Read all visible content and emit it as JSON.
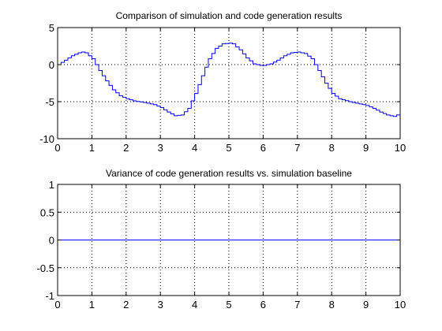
{
  "figure": {
    "background": "#ffffff",
    "axes_color": "#000000",
    "grid_color": "#000000",
    "line_color": "#0000ff"
  },
  "chart_data": [
    {
      "type": "line",
      "title": "Comparison of simulation and code generation results",
      "xlabel": "",
      "ylabel": "",
      "xlim": [
        0,
        10
      ],
      "ylim": [
        -10,
        5
      ],
      "xticks": [
        0,
        1,
        2,
        3,
        4,
        5,
        6,
        7,
        8,
        9,
        10
      ],
      "yticks": [
        5,
        0,
        -5,
        -10
      ],
      "grid": true,
      "grid_style": "dotted",
      "step": true,
      "series": [
        {
          "name": "",
          "x": [
            0,
            0.2,
            0.4,
            0.6,
            0.7,
            0.8,
            1.0,
            1.2,
            1.4,
            1.6,
            1.8,
            2.0,
            2.2,
            2.5,
            2.8,
            3.0,
            3.2,
            3.4,
            3.6,
            3.8,
            4.0,
            4.2,
            4.4,
            4.6,
            4.8,
            5.0,
            5.1,
            5.3,
            5.5,
            5.7,
            5.9,
            6.0,
            6.2,
            6.4,
            6.6,
            6.8,
            7.0,
            7.2,
            7.4,
            7.6,
            7.8,
            8.0,
            8.2,
            8.5,
            8.8,
            9.0,
            9.2,
            9.4,
            9.6,
            9.8,
            10.0
          ],
          "y": [
            0,
            0.6,
            1.2,
            1.6,
            1.7,
            1.6,
            0.8,
            -0.8,
            -2.2,
            -3.4,
            -4.2,
            -4.6,
            -4.9,
            -5.1,
            -5.4,
            -5.8,
            -6.4,
            -6.9,
            -6.8,
            -5.9,
            -3.9,
            -1.5,
            0.8,
            2.2,
            2.8,
            2.9,
            2.8,
            2.0,
            0.9,
            0.1,
            -0.1,
            -0.1,
            0.1,
            0.6,
            1.2,
            1.6,
            1.7,
            1.5,
            0.8,
            -0.8,
            -2.5,
            -3.9,
            -4.6,
            -5.0,
            -5.3,
            -5.5,
            -5.9,
            -6.4,
            -6.8,
            -7.0,
            -6.6
          ]
        }
      ]
    },
    {
      "type": "line",
      "title": "Variance of code generation results vs. simulation baseline",
      "xlabel": "",
      "ylabel": "",
      "xlim": [
        0,
        10
      ],
      "ylim": [
        -1,
        1
      ],
      "xticks": [
        0,
        1,
        2,
        3,
        4,
        5,
        6,
        7,
        8,
        9,
        10
      ],
      "yticks": [
        1,
        0.5,
        0,
        -0.5,
        -1
      ],
      "grid": true,
      "grid_style": "dotted",
      "step": false,
      "series": [
        {
          "name": "",
          "x": [
            0,
            10
          ],
          "y": [
            0,
            0
          ]
        }
      ]
    }
  ]
}
